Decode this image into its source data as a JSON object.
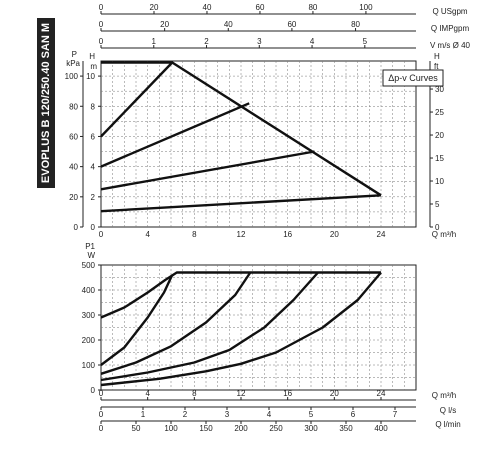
{
  "product_title": "EVOPLUS B 120/250.40 SAN M",
  "chart_data": [
    {
      "type": "line",
      "panel": "head",
      "title": "",
      "legend": "Δp-v Curves",
      "y_left": {
        "label_top": "P",
        "label_bottom": "kPa",
        "min": 0,
        "max": 110,
        "ticks": [
          0,
          20,
          40,
          60,
          80,
          100
        ]
      },
      "y_left2": {
        "label_top": "H",
        "label_bottom": "m",
        "min": 0,
        "max": 11,
        "ticks": [
          0,
          2,
          4,
          6,
          8,
          10
        ]
      },
      "y_right": {
        "label_top": "H",
        "label_bottom": "ft",
        "min": 0,
        "max": 36.1,
        "ticks": [
          0,
          5,
          10,
          15,
          20,
          25,
          30
        ]
      },
      "x_axis": {
        "label": "Q m³/h",
        "min": 0,
        "max": 27,
        "ticks": [
          0,
          4,
          8,
          12,
          16,
          20,
          24
        ]
      },
      "top_axes": [
        {
          "label": "Q USgpm",
          "max": 118.9,
          "ticks": [
            0,
            20,
            40,
            60,
            80,
            100
          ]
        },
        {
          "label": "Q IMPgpm",
          "max": 99.0,
          "ticks": [
            0,
            20,
            40,
            60,
            80
          ]
        },
        {
          "label": "V m/s Ø 40",
          "max": 5.97,
          "ticks": [
            0,
            1,
            2,
            3,
            4,
            5
          ]
        }
      ],
      "series": [
        {
          "points": [
            [
              0,
              10.9
            ],
            [
              6.1,
              10.9
            ],
            [
              24,
              2.1
            ]
          ]
        },
        {
          "points": [
            [
              0,
              6.0
            ],
            [
              6.1,
              10.9
            ]
          ]
        },
        {
          "points": [
            [
              0,
              4.0
            ],
            [
              12.7,
              8.2
            ]
          ]
        },
        {
          "points": [
            [
              0,
              2.5
            ],
            [
              18.3,
              5.0
            ]
          ]
        },
        {
          "points": [
            [
              0,
              1.05
            ],
            [
              24,
              2.1
            ]
          ]
        }
      ]
    },
    {
      "type": "line",
      "panel": "power",
      "title": "",
      "y_left": {
        "label_top": "P1",
        "label_bottom": "W",
        "min": 0,
        "max": 500,
        "ticks": [
          0,
          100,
          200,
          300,
          400,
          500
        ]
      },
      "x_axis": {
        "label": "Q m³/h",
        "min": 0,
        "max": 27,
        "ticks": [
          0,
          4,
          8,
          12,
          16,
          20,
          24
        ]
      },
      "bottom_axes": [
        {
          "label": "Q l/s",
          "max": 7.5,
          "ticks": [
            0,
            1,
            2,
            3,
            4,
            5,
            6,
            7
          ]
        },
        {
          "label": "Q l/min",
          "max": 450,
          "ticks": [
            0,
            50,
            100,
            150,
            200,
            250,
            300,
            350,
            400
          ]
        }
      ],
      "series": [
        {
          "points": [
            [
              0,
              290
            ],
            [
              2,
              330
            ],
            [
              4,
              390
            ],
            [
              5.5,
              440
            ],
            [
              6.5,
              470
            ],
            [
              24,
              470
            ]
          ]
        },
        {
          "points": [
            [
              0,
              100
            ],
            [
              2,
              170
            ],
            [
              4,
              290
            ],
            [
              5.4,
              390
            ],
            [
              6.1,
              460
            ]
          ]
        },
        {
          "points": [
            [
              0,
              65
            ],
            [
              3,
              110
            ],
            [
              6,
              175
            ],
            [
              9,
              270
            ],
            [
              11.5,
              380
            ],
            [
              12.8,
              470
            ]
          ]
        },
        {
          "points": [
            [
              0,
              40
            ],
            [
              4,
              70
            ],
            [
              8,
              110
            ],
            [
              11,
              160
            ],
            [
              14,
              250
            ],
            [
              16.5,
              360
            ],
            [
              18.6,
              470
            ]
          ]
        },
        {
          "points": [
            [
              0,
              20
            ],
            [
              5,
              45
            ],
            [
              9,
              75
            ],
            [
              12,
              105
            ],
            [
              15,
              150
            ],
            [
              19,
              250
            ],
            [
              22,
              360
            ],
            [
              24,
              470
            ]
          ]
        }
      ]
    }
  ]
}
